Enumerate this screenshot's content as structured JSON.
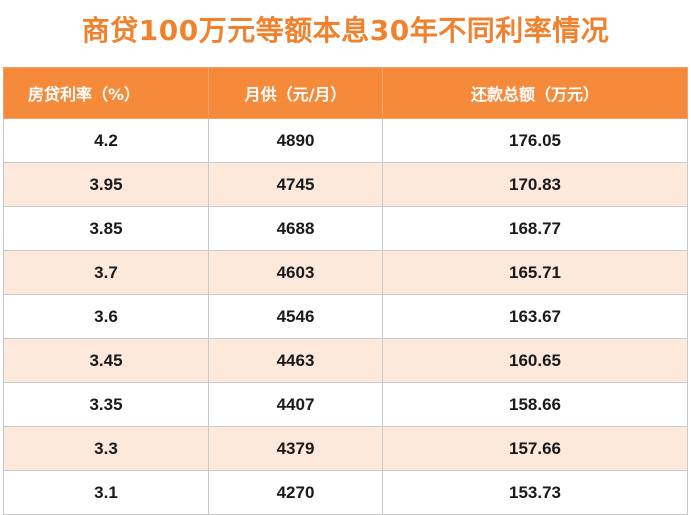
{
  "title": "商贷100万元等额本息30年不同利率情况",
  "table": {
    "headers": [
      "房贷利率（%）",
      "月供（元/月）",
      "还款总额（万元）"
    ],
    "rows": [
      [
        "4.2",
        "4890",
        "176.05"
      ],
      [
        "3.95",
        "4745",
        "170.83"
      ],
      [
        "3.85",
        "4688",
        "168.77"
      ],
      [
        "3.7",
        "4603",
        "165.71"
      ],
      [
        "3.6",
        "4546",
        "163.67"
      ],
      [
        "3.45",
        "4463",
        "160.65"
      ],
      [
        "3.35",
        "4407",
        "158.66"
      ],
      [
        "3.3",
        "4379",
        "157.66"
      ],
      [
        "3.1",
        "4270",
        "153.73"
      ]
    ]
  },
  "colors": {
    "title": "#f0822e",
    "header_bg": "#f58a3a",
    "alt_row_bg": "#fde8dc"
  }
}
